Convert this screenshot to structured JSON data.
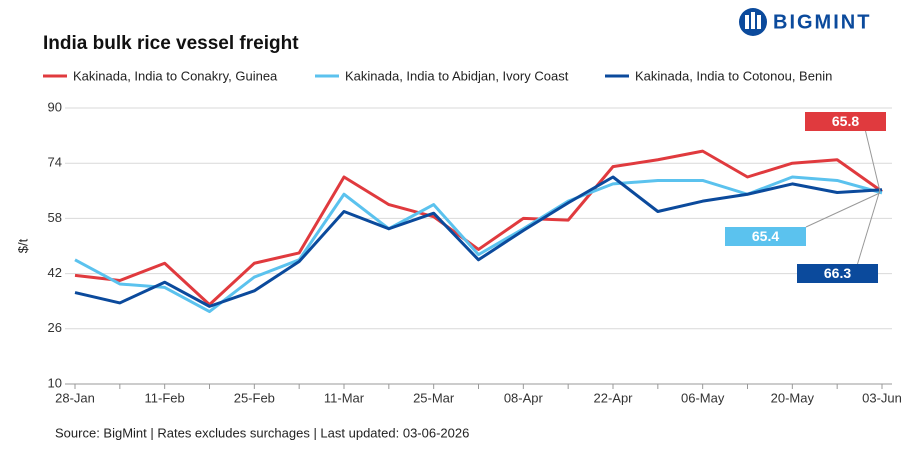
{
  "brand": "BIGMINT",
  "chart_data": {
    "type": "line",
    "title": "India bulk rice vessel freight",
    "y_label": "$/t",
    "source": "Source: BigMint | Rates excludes surchages | Last updated: 03-06-2026",
    "categories": [
      "28-Jan",
      null,
      "11-Feb",
      null,
      "25-Feb",
      null,
      "11-Mar",
      null,
      "25-Mar",
      null,
      "08-Apr",
      null,
      "22-Apr",
      null,
      "06-May",
      null,
      "20-May",
      null,
      "03-Jun"
    ],
    "ylim": [
      10,
      90
    ],
    "yticks": [
      10,
      26,
      42,
      58,
      74,
      90
    ],
    "grid": true,
    "legend": "top",
    "series": [
      {
        "name": "Kakinada, India to Conakry, Guinea",
        "color": "#e03a3e",
        "values": [
          41.5,
          40,
          45,
          33,
          45,
          48,
          70,
          62,
          58.5,
          49,
          58,
          57.5,
          73,
          75,
          77.5,
          70,
          74,
          75,
          65.8
        ]
      },
      {
        "name": "Kakinada, India to Abidjan, Ivory Coast",
        "color": "#5bc2ee",
        "values": [
          46,
          39,
          38,
          31,
          41,
          46,
          65,
          55,
          62,
          47.5,
          55,
          63,
          68,
          69,
          69,
          65,
          70,
          69,
          65.4
        ]
      },
      {
        "name": "Kakinada, India to Cotonou, Benin",
        "color": "#0b4a9c",
        "values": [
          36.5,
          33.5,
          39.5,
          32.5,
          37,
          45.5,
          60,
          55,
          59.5,
          46,
          54.5,
          62.5,
          70,
          60,
          63,
          65,
          68,
          65.5,
          66.3
        ]
      }
    ]
  }
}
